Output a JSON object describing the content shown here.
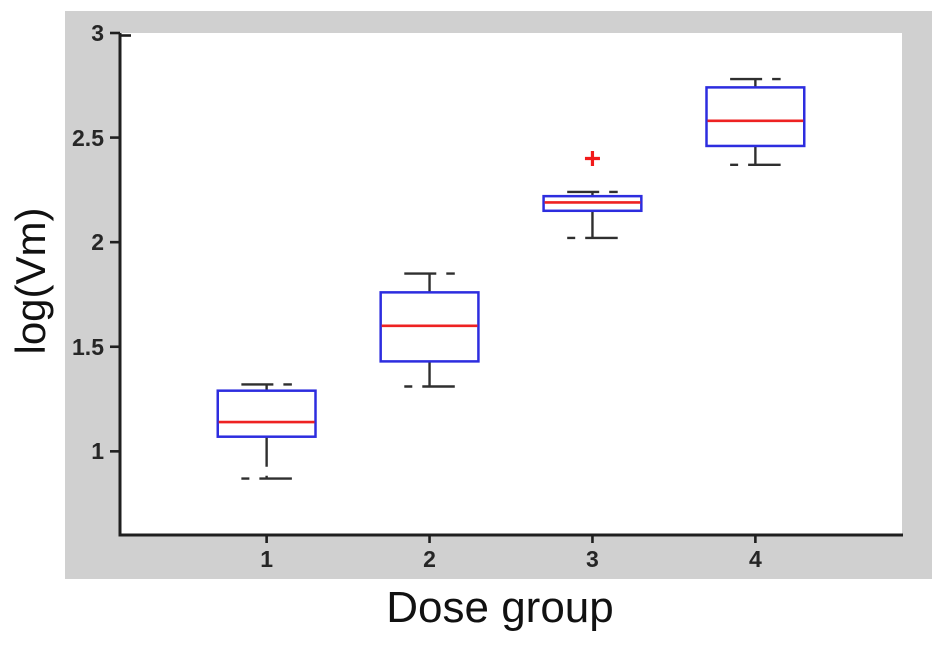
{
  "chart_data": {
    "type": "boxplot",
    "title": "",
    "xlabel": "Dose group",
    "ylabel": "log(Vm)",
    "xlim": [
      0.1,
      4.9
    ],
    "ylim": [
      0.6,
      3.0
    ],
    "grid": false,
    "legend": null,
    "xticks": [
      {
        "value": 1,
        "label": "1"
      },
      {
        "value": 2,
        "label": "2"
      },
      {
        "value": 3,
        "label": "3"
      },
      {
        "value": 4,
        "label": "4"
      }
    ],
    "yticks": [
      {
        "value": 1,
        "label": "1"
      },
      {
        "value": 1.5,
        "label": "1.5"
      },
      {
        "value": 2,
        "label": "2"
      },
      {
        "value": 2.5,
        "label": "2.5"
      },
      {
        "value": 3,
        "label": "3"
      }
    ],
    "box_width": 0.6,
    "cap_width": 0.31,
    "groups": [
      {
        "category": "1",
        "position": 1,
        "whisker_low": 0.87,
        "q1": 1.07,
        "median": 1.14,
        "q3": 1.29,
        "whisker_high": 1.32,
        "outliers": []
      },
      {
        "category": "2",
        "position": 2,
        "whisker_low": 1.31,
        "q1": 1.43,
        "median": 1.6,
        "q3": 1.76,
        "whisker_high": 1.85,
        "outliers": []
      },
      {
        "category": "3",
        "position": 3,
        "whisker_low": 2.02,
        "q1": 2.15,
        "median": 2.19,
        "q3": 2.22,
        "whisker_high": 2.24,
        "outliers": [
          2.4
        ]
      },
      {
        "category": "4",
        "position": 4,
        "whisker_low": 2.37,
        "q1": 2.46,
        "median": 2.58,
        "q3": 2.74,
        "whisker_high": 2.78,
        "outliers": []
      }
    ],
    "colors": {
      "box_edge": "#2d2ddf",
      "median": "#ee2222",
      "whisker": "#2f2f2f",
      "outlier": "#f11a1a",
      "axis": "#1f1f1f",
      "tick_label": "#262626",
      "panel_background": "#d0d0d0",
      "plot_background": "#ffffff",
      "page_background": "#ffffff",
      "label_color": "#111111"
    }
  }
}
